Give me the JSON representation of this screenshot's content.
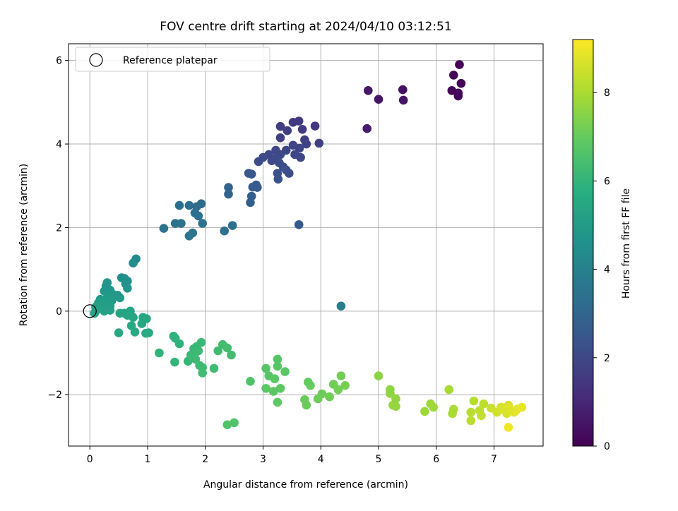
{
  "chart_data": {
    "type": "scatter",
    "title": "FOV centre drift starting at 2024/04/10 03:12:51",
    "xlabel": "Angular distance from reference (arcmin)",
    "ylabel": "Rotation from reference (arcmin)",
    "xlim": [
      -0.37,
      7.85
    ],
    "ylim": [
      -3.23,
      6.4
    ],
    "xticks": [
      0,
      1,
      2,
      3,
      4,
      5,
      6,
      7
    ],
    "yticks": [
      -2,
      0,
      2,
      4,
      6
    ],
    "grid": true,
    "legend": {
      "placement": "top-left",
      "entries": [
        {
          "label": "Reference platepar",
          "marker": "open-circle"
        }
      ]
    },
    "reference_point": {
      "x": 0,
      "y": 0
    },
    "colorbar": {
      "label": "Hours from first FF file",
      "min": 0,
      "max": 9.2,
      "ticks": [
        0,
        2,
        4,
        6,
        8
      ],
      "colormap": "viridis"
    },
    "points": [
      {
        "x": 6.4,
        "y": 5.9,
        "c": 0.05
      },
      {
        "x": 6.3,
        "y": 5.65,
        "c": 0.1
      },
      {
        "x": 6.43,
        "y": 5.45,
        "c": 0.12
      },
      {
        "x": 6.27,
        "y": 5.28,
        "c": 0.08
      },
      {
        "x": 6.38,
        "y": 5.22,
        "c": 0.15
      },
      {
        "x": 6.38,
        "y": 5.15,
        "c": 0.18
      },
      {
        "x": 5.42,
        "y": 5.3,
        "c": 0.45
      },
      {
        "x": 5.43,
        "y": 5.05,
        "c": 0.5
      },
      {
        "x": 5.0,
        "y": 5.07,
        "c": 0.55
      },
      {
        "x": 4.82,
        "y": 5.28,
        "c": 0.6
      },
      {
        "x": 4.8,
        "y": 4.37,
        "c": 0.7
      },
      {
        "x": 3.62,
        "y": 4.55,
        "c": 1.6
      },
      {
        "x": 3.52,
        "y": 4.52,
        "c": 1.55
      },
      {
        "x": 3.9,
        "y": 4.43,
        "c": 1.5
      },
      {
        "x": 3.3,
        "y": 4.42,
        "c": 1.65
      },
      {
        "x": 3.42,
        "y": 4.32,
        "c": 1.7
      },
      {
        "x": 3.68,
        "y": 4.35,
        "c": 1.6
      },
      {
        "x": 3.3,
        "y": 4.15,
        "c": 1.75
      },
      {
        "x": 3.72,
        "y": 4.1,
        "c": 1.7
      },
      {
        "x": 3.75,
        "y": 4.0,
        "c": 1.8
      },
      {
        "x": 3.97,
        "y": 4.02,
        "c": 1.75
      },
      {
        "x": 3.52,
        "y": 3.97,
        "c": 1.85
      },
      {
        "x": 3.63,
        "y": 3.9,
        "c": 1.9
      },
      {
        "x": 3.4,
        "y": 3.85,
        "c": 1.95
      },
      {
        "x": 3.22,
        "y": 3.85,
        "c": 2.0
      },
      {
        "x": 3.1,
        "y": 3.75,
        "c": 2.05
      },
      {
        "x": 3.0,
        "y": 3.68,
        "c": 2.1
      },
      {
        "x": 3.3,
        "y": 3.75,
        "c": 2.05
      },
      {
        "x": 3.55,
        "y": 3.75,
        "c": 1.95
      },
      {
        "x": 3.65,
        "y": 3.68,
        "c": 2.0
      },
      {
        "x": 3.2,
        "y": 3.65,
        "c": 2.15
      },
      {
        "x": 3.15,
        "y": 3.6,
        "c": 2.1
      },
      {
        "x": 2.92,
        "y": 3.58,
        "c": 2.2
      },
      {
        "x": 3.28,
        "y": 3.55,
        "c": 2.15
      },
      {
        "x": 3.35,
        "y": 3.45,
        "c": 2.2
      },
      {
        "x": 3.4,
        "y": 3.38,
        "c": 2.25
      },
      {
        "x": 3.25,
        "y": 3.3,
        "c": 2.3
      },
      {
        "x": 3.45,
        "y": 3.3,
        "c": 2.2
      },
      {
        "x": 3.26,
        "y": 3.16,
        "c": 2.35
      },
      {
        "x": 2.8,
        "y": 3.28,
        "c": 2.5
      },
      {
        "x": 2.75,
        "y": 3.3,
        "c": 2.55
      },
      {
        "x": 2.82,
        "y": 2.97,
        "c": 2.7
      },
      {
        "x": 2.88,
        "y": 3.02,
        "c": 2.6
      },
      {
        "x": 2.9,
        "y": 2.96,
        "c": 2.65
      },
      {
        "x": 2.8,
        "y": 2.75,
        "c": 2.75
      },
      {
        "x": 2.78,
        "y": 2.6,
        "c": 2.8
      },
      {
        "x": 2.4,
        "y": 2.96,
        "c": 2.9
      },
      {
        "x": 2.4,
        "y": 2.8,
        "c": 2.95
      },
      {
        "x": 3.62,
        "y": 2.07,
        "c": 2.6
      },
      {
        "x": 1.93,
        "y": 2.57,
        "c": 3.2
      },
      {
        "x": 1.55,
        "y": 2.53,
        "c": 3.35
      },
      {
        "x": 1.72,
        "y": 2.53,
        "c": 3.3
      },
      {
        "x": 1.85,
        "y": 2.5,
        "c": 3.25
      },
      {
        "x": 1.82,
        "y": 2.35,
        "c": 3.3
      },
      {
        "x": 1.88,
        "y": 2.28,
        "c": 3.35
      },
      {
        "x": 1.48,
        "y": 2.1,
        "c": 3.4
      },
      {
        "x": 1.58,
        "y": 2.1,
        "c": 3.45
      },
      {
        "x": 1.95,
        "y": 2.1,
        "c": 3.4
      },
      {
        "x": 1.28,
        "y": 1.98,
        "c": 3.5
      },
      {
        "x": 2.47,
        "y": 2.05,
        "c": 3.35
      },
      {
        "x": 2.33,
        "y": 1.92,
        "c": 3.4
      },
      {
        "x": 1.78,
        "y": 1.87,
        "c": 3.55
      },
      {
        "x": 1.72,
        "y": 1.8,
        "c": 3.6
      },
      {
        "x": 4.35,
        "y": 0.12,
        "c": 3.9
      },
      {
        "x": 0.8,
        "y": 1.25,
        "c": 4.35
      },
      {
        "x": 0.75,
        "y": 1.15,
        "c": 4.4
      },
      {
        "x": 0.55,
        "y": 0.8,
        "c": 4.5
      },
      {
        "x": 0.6,
        "y": 0.78,
        "c": 4.55
      },
      {
        "x": 0.65,
        "y": 0.72,
        "c": 4.6
      },
      {
        "x": 0.3,
        "y": 0.68,
        "c": 4.7
      },
      {
        "x": 0.28,
        "y": 0.6,
        "c": 4.75
      },
      {
        "x": 0.62,
        "y": 0.65,
        "c": 4.65
      },
      {
        "x": 0.65,
        "y": 0.55,
        "c": 4.7
      },
      {
        "x": 0.35,
        "y": 0.5,
        "c": 4.8
      },
      {
        "x": 0.25,
        "y": 0.48,
        "c": 4.85
      },
      {
        "x": 0.4,
        "y": 0.4,
        "c": 4.9
      },
      {
        "x": 0.48,
        "y": 0.38,
        "c": 4.9
      },
      {
        "x": 0.52,
        "y": 0.32,
        "c": 4.95
      },
      {
        "x": 0.3,
        "y": 0.32,
        "c": 5.0
      },
      {
        "x": 0.18,
        "y": 0.28,
        "c": 5.0
      },
      {
        "x": 0.38,
        "y": 0.25,
        "c": 5.0
      },
      {
        "x": 0.15,
        "y": 0.2,
        "c": 5.05
      },
      {
        "x": 0.25,
        "y": 0.2,
        "c": 5.05
      },
      {
        "x": 0.22,
        "y": 0.15,
        "c": 5.1
      },
      {
        "x": 0.35,
        "y": 0.12,
        "c": 5.1
      },
      {
        "x": 0.1,
        "y": 0.1,
        "c": 5.15
      },
      {
        "x": 0.28,
        "y": 0.08,
        "c": 5.15
      },
      {
        "x": 0.2,
        "y": 0.05,
        "c": 5.2
      },
      {
        "x": 0.35,
        "y": 0.02,
        "c": 5.2
      },
      {
        "x": 0.1,
        "y": 0.0,
        "c": 5.25
      },
      {
        "x": 0.25,
        "y": 0.0,
        "c": 5.25
      },
      {
        "x": 0.08,
        "y": -0.05,
        "c": 5.3
      },
      {
        "x": 0.52,
        "y": -0.05,
        "c": 5.35
      },
      {
        "x": 0.6,
        "y": -0.05,
        "c": 5.35
      },
      {
        "x": 0.7,
        "y": 0.0,
        "c": 5.35
      },
      {
        "x": 0.65,
        "y": -0.1,
        "c": 5.4
      },
      {
        "x": 0.75,
        "y": -0.15,
        "c": 5.45
      },
      {
        "x": 0.92,
        "y": -0.15,
        "c": 5.45
      },
      {
        "x": 0.98,
        "y": -0.18,
        "c": 5.5
      },
      {
        "x": 0.9,
        "y": -0.3,
        "c": 5.5
      },
      {
        "x": 0.72,
        "y": -0.35,
        "c": 5.55
      },
      {
        "x": 0.78,
        "y": -0.5,
        "c": 5.55
      },
      {
        "x": 0.97,
        "y": -0.53,
        "c": 5.6
      },
      {
        "x": 1.02,
        "y": -0.52,
        "c": 5.6
      },
      {
        "x": 0.5,
        "y": -0.52,
        "c": 5.5
      },
      {
        "x": 1.45,
        "y": -0.6,
        "c": 5.85
      },
      {
        "x": 1.48,
        "y": -0.65,
        "c": 5.9
      },
      {
        "x": 1.55,
        "y": -0.78,
        "c": 5.9
      },
      {
        "x": 1.2,
        "y": -1.0,
        "c": 5.95
      },
      {
        "x": 1.47,
        "y": -1.22,
        "c": 6.0
      },
      {
        "x": 1.7,
        "y": -1.2,
        "c": 6.05
      },
      {
        "x": 1.75,
        "y": -1.05,
        "c": 6.05
      },
      {
        "x": 1.8,
        "y": -0.9,
        "c": 6.1
      },
      {
        "x": 1.85,
        "y": -0.85,
        "c": 6.1
      },
      {
        "x": 1.93,
        "y": -0.75,
        "c": 6.15
      },
      {
        "x": 1.88,
        "y": -0.95,
        "c": 6.15
      },
      {
        "x": 1.82,
        "y": -1.0,
        "c": 6.2
      },
      {
        "x": 1.78,
        "y": -1.1,
        "c": 6.2
      },
      {
        "x": 1.83,
        "y": -1.15,
        "c": 6.2
      },
      {
        "x": 1.9,
        "y": -1.3,
        "c": 6.25
      },
      {
        "x": 1.95,
        "y": -1.35,
        "c": 6.25
      },
      {
        "x": 1.95,
        "y": -1.48,
        "c": 6.3
      },
      {
        "x": 2.15,
        "y": -1.37,
        "c": 6.3
      },
      {
        "x": 2.22,
        "y": -0.95,
        "c": 6.3
      },
      {
        "x": 2.3,
        "y": -0.8,
        "c": 6.35
      },
      {
        "x": 2.38,
        "y": -0.88,
        "c": 6.35
      },
      {
        "x": 2.45,
        "y": -1.05,
        "c": 6.35
      },
      {
        "x": 2.38,
        "y": -2.72,
        "c": 6.6
      },
      {
        "x": 2.5,
        "y": -2.67,
        "c": 6.6
      },
      {
        "x": 2.78,
        "y": -1.68,
        "c": 6.6
      },
      {
        "x": 3.05,
        "y": -1.37,
        "c": 6.7
      },
      {
        "x": 3.25,
        "y": -1.15,
        "c": 6.7
      },
      {
        "x": 3.25,
        "y": -1.32,
        "c": 6.75
      },
      {
        "x": 3.1,
        "y": -1.55,
        "c": 6.75
      },
      {
        "x": 3.2,
        "y": -1.62,
        "c": 6.8
      },
      {
        "x": 3.38,
        "y": -1.45,
        "c": 6.8
      },
      {
        "x": 3.05,
        "y": -1.85,
        "c": 6.8
      },
      {
        "x": 3.18,
        "y": -1.92,
        "c": 6.85
      },
      {
        "x": 3.3,
        "y": -1.85,
        "c": 6.85
      },
      {
        "x": 3.25,
        "y": -2.18,
        "c": 6.9
      },
      {
        "x": 3.78,
        "y": -1.7,
        "c": 7.0
      },
      {
        "x": 3.82,
        "y": -1.78,
        "c": 7.0
      },
      {
        "x": 3.72,
        "y": -2.12,
        "c": 7.05
      },
      {
        "x": 3.75,
        "y": -2.25,
        "c": 7.05
      },
      {
        "x": 3.95,
        "y": -2.1,
        "c": 7.1
      },
      {
        "x": 4.02,
        "y": -1.98,
        "c": 7.1
      },
      {
        "x": 4.15,
        "y": -2.05,
        "c": 7.15
      },
      {
        "x": 4.22,
        "y": -1.75,
        "c": 7.15
      },
      {
        "x": 4.3,
        "y": -1.88,
        "c": 7.2
      },
      {
        "x": 4.35,
        "y": -1.55,
        "c": 7.2
      },
      {
        "x": 4.42,
        "y": -1.78,
        "c": 7.25
      },
      {
        "x": 5.0,
        "y": -1.55,
        "c": 7.55
      },
      {
        "x": 5.2,
        "y": -1.88,
        "c": 7.6
      },
      {
        "x": 5.2,
        "y": -1.97,
        "c": 7.6
      },
      {
        "x": 5.3,
        "y": -2.1,
        "c": 7.65
      },
      {
        "x": 5.25,
        "y": -2.25,
        "c": 7.65
      },
      {
        "x": 5.3,
        "y": -2.28,
        "c": 7.7
      },
      {
        "x": 5.8,
        "y": -2.4,
        "c": 7.8
      },
      {
        "x": 5.9,
        "y": -2.22,
        "c": 7.8
      },
      {
        "x": 5.95,
        "y": -2.3,
        "c": 7.85
      },
      {
        "x": 6.22,
        "y": -1.88,
        "c": 7.95
      },
      {
        "x": 6.3,
        "y": -2.35,
        "c": 8.0
      },
      {
        "x": 6.28,
        "y": -2.45,
        "c": 8.0
      },
      {
        "x": 6.65,
        "y": -2.15,
        "c": 8.2
      },
      {
        "x": 6.6,
        "y": -2.42,
        "c": 8.2
      },
      {
        "x": 6.6,
        "y": -2.62,
        "c": 8.25
      },
      {
        "x": 6.75,
        "y": -2.38,
        "c": 8.3
      },
      {
        "x": 6.82,
        "y": -2.22,
        "c": 8.3
      },
      {
        "x": 6.78,
        "y": -2.5,
        "c": 8.35
      },
      {
        "x": 6.95,
        "y": -2.32,
        "c": 8.45
      },
      {
        "x": 7.05,
        "y": -2.42,
        "c": 8.55
      },
      {
        "x": 7.12,
        "y": -2.3,
        "c": 8.6
      },
      {
        "x": 7.15,
        "y": -2.35,
        "c": 8.65
      },
      {
        "x": 7.25,
        "y": -2.25,
        "c": 8.7
      },
      {
        "x": 7.22,
        "y": -2.45,
        "c": 8.7
      },
      {
        "x": 7.28,
        "y": -2.35,
        "c": 8.75
      },
      {
        "x": 7.35,
        "y": -2.42,
        "c": 8.8
      },
      {
        "x": 7.4,
        "y": -2.35,
        "c": 8.85
      },
      {
        "x": 7.48,
        "y": -2.3,
        "c": 8.9
      },
      {
        "x": 7.25,
        "y": -2.78,
        "c": 9.0
      }
    ]
  }
}
